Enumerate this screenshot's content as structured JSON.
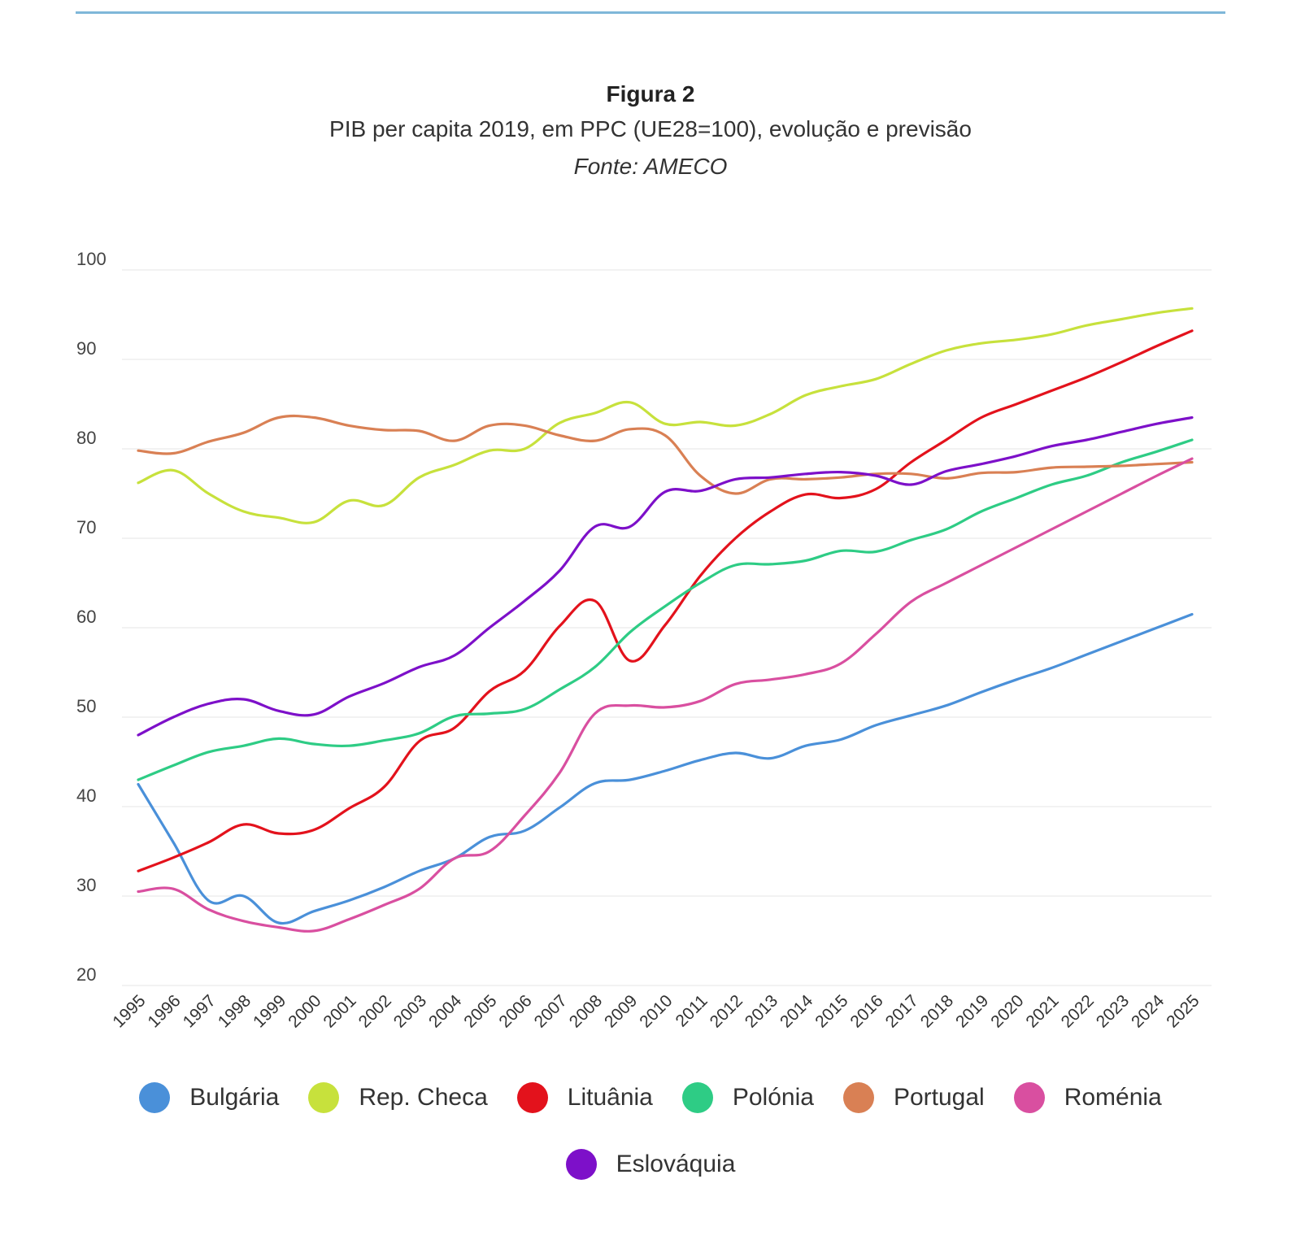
{
  "title": "Figura 2",
  "subtitle": "PIB per capita 2019, em PPC (UE28=100), evolução e previsão",
  "source": "Fonte: AMECO",
  "chart_data": {
    "type": "line",
    "x": [
      "1995",
      "1996",
      "1997",
      "1998",
      "1999",
      "2000",
      "2001",
      "2002",
      "2003",
      "2004",
      "2005",
      "2006",
      "2007",
      "2008",
      "2009",
      "2010",
      "2011",
      "2012",
      "2013",
      "2014",
      "2015",
      "2016",
      "2017",
      "2018",
      "2019",
      "2020",
      "2021",
      "2022",
      "2023",
      "2024",
      "2025"
    ],
    "ylim": [
      20,
      100
    ],
    "yticks": [
      "20",
      "30",
      "40",
      "50",
      "60",
      "70",
      "80",
      "90",
      "100"
    ],
    "grid": true,
    "legend_position": "bottom",
    "series": [
      {
        "name": "Bulgária",
        "color": "#4a90d9",
        "values": [
          42.5,
          36.0,
          29.5,
          30.0,
          27.0,
          28.3,
          29.5,
          31.0,
          32.8,
          34.2,
          36.6,
          37.3,
          39.9,
          42.6,
          43.0,
          44.0,
          45.2,
          46.0,
          45.4,
          46.8,
          47.5,
          49.1,
          50.2,
          51.3,
          52.8,
          54.2,
          55.5,
          57.0,
          58.5,
          60.0,
          61.5
        ]
      },
      {
        "name": "Rep. Checa",
        "color": "#c7e13c",
        "values": [
          76.2,
          77.6,
          75.0,
          73.0,
          72.3,
          71.8,
          74.2,
          73.7,
          76.8,
          78.2,
          79.8,
          80.0,
          82.9,
          84.0,
          85.2,
          82.8,
          83.0,
          82.6,
          83.9,
          86.0,
          87.0,
          87.8,
          89.5,
          91.0,
          91.8,
          92.2,
          92.8,
          93.8,
          94.5,
          95.2,
          95.7
        ]
      },
      {
        "name": "Lituânia",
        "color": "#e3121c",
        "values": [
          32.8,
          34.3,
          36.0,
          38.0,
          37.0,
          37.4,
          39.8,
          42.2,
          47.3,
          48.8,
          52.9,
          55.2,
          60.2,
          63.0,
          56.3,
          60.3,
          65.8,
          70.0,
          73.0,
          74.9,
          74.5,
          75.5,
          78.5,
          81.0,
          83.5,
          85.0,
          86.5,
          88.0,
          89.7,
          91.5,
          93.2
        ]
      },
      {
        "name": "Polónia",
        "color": "#2ecc85",
        "values": [
          43.0,
          44.6,
          46.1,
          46.8,
          47.6,
          47.0,
          46.8,
          47.4,
          48.2,
          50.1,
          50.4,
          50.9,
          53.1,
          55.6,
          59.5,
          62.4,
          65.0,
          67.0,
          67.1,
          67.5,
          68.6,
          68.5,
          69.8,
          71.0,
          73.0,
          74.5,
          76.0,
          77.0,
          78.5,
          79.7,
          81.0
        ]
      },
      {
        "name": "Portugal",
        "color": "#d98054",
        "values": [
          79.8,
          79.5,
          80.8,
          81.8,
          83.5,
          83.5,
          82.6,
          82.1,
          82.0,
          80.9,
          82.6,
          82.6,
          81.5,
          80.9,
          82.2,
          81.5,
          77.0,
          75.0,
          76.6,
          76.6,
          76.8,
          77.2,
          77.2,
          76.7,
          77.3,
          77.4,
          77.9,
          78.0,
          78.1,
          78.3,
          78.5
        ]
      },
      {
        "name": "Roménia",
        "color": "#d94fa0",
        "values": [
          30.5,
          30.8,
          28.5,
          27.2,
          26.5,
          26.1,
          27.4,
          29.0,
          30.8,
          34.2,
          35.0,
          39.0,
          43.8,
          50.4,
          51.3,
          51.1,
          51.8,
          53.7,
          54.2,
          54.8,
          56.0,
          59.3,
          62.9,
          65.0,
          67.0,
          69.0,
          71.0,
          73.0,
          75.0,
          77.0,
          78.9
        ]
      },
      {
        "name": "Eslováquia",
        "color": "#7d10c9",
        "values": [
          48.0,
          50.0,
          51.5,
          52.0,
          50.7,
          50.3,
          52.3,
          53.8,
          55.6,
          56.9,
          60.0,
          63.0,
          66.4,
          71.3,
          71.3,
          75.2,
          75.3,
          76.6,
          76.8,
          77.2,
          77.4,
          77.0,
          76.0,
          77.5,
          78.3,
          79.2,
          80.3,
          81.0,
          81.9,
          82.8,
          83.5
        ]
      }
    ]
  }
}
